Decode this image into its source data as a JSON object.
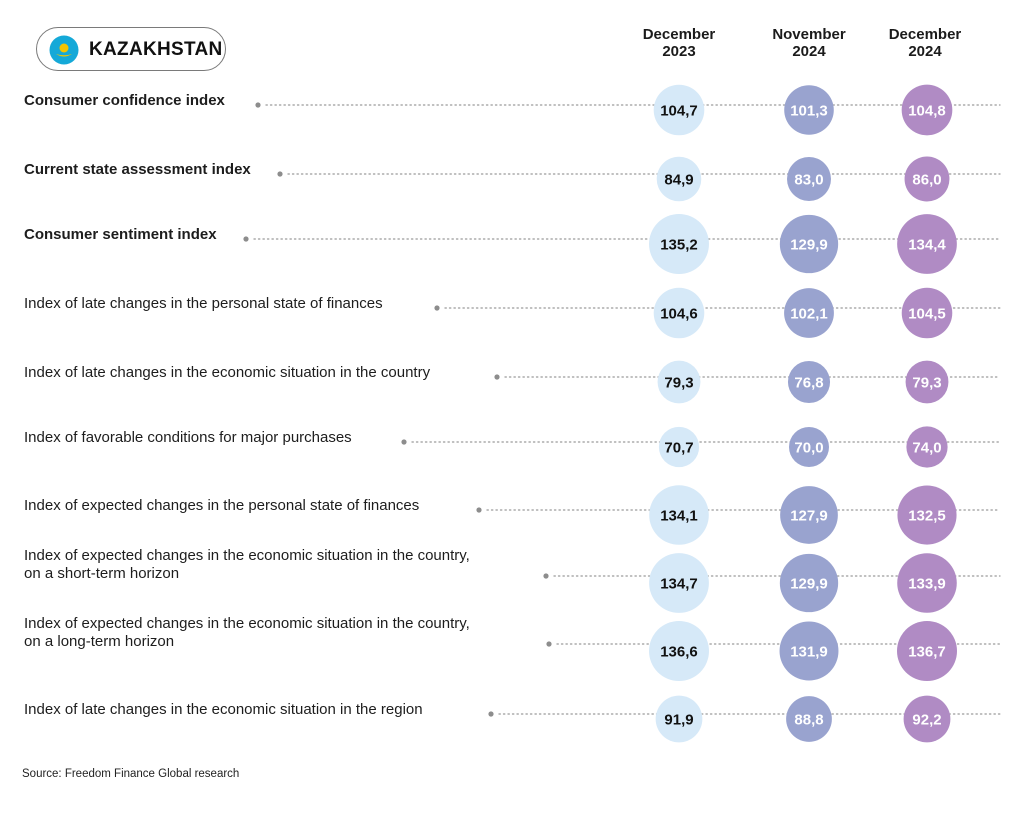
{
  "badge": {
    "country": "KAZAKHSTAN",
    "flag_icon": "kazakhstan-flag-icon"
  },
  "source": "Source: Freedom Finance Global research",
  "colors": {
    "dec2023": "#d6e9f8",
    "nov2024": "#99a3cf",
    "dec2024": "#b08bc4",
    "dec2023_text": "#111111",
    "other_text": "#ffffff",
    "dots": "#9a9a9a"
  },
  "chart_data": {
    "type": "table",
    "columns": [
      {
        "line1": "December",
        "line2": "2023"
      },
      {
        "line1": "November",
        "line2": "2024"
      },
      {
        "line1": "December",
        "line2": "2024"
      }
    ],
    "rows": [
      {
        "label": [
          "Consumer confidence index"
        ],
        "bold": true,
        "values": [
          "104,7",
          "101,3",
          "104,8"
        ]
      },
      {
        "label": [
          "Current state assessment index"
        ],
        "bold": true,
        "values": [
          "84,9",
          "83,0",
          "86,0"
        ]
      },
      {
        "label": [
          "Consumer sentiment index"
        ],
        "bold": true,
        "values": [
          "135,2",
          "129,9",
          "134,4"
        ]
      },
      {
        "label": [
          "Index of late changes in the personal state of finances"
        ],
        "bold": false,
        "values": [
          "104,6",
          "102,1",
          "104,5"
        ]
      },
      {
        "label": [
          "Index of late changes in the economic situation in the country"
        ],
        "bold": false,
        "values": [
          "79,3",
          "76,8",
          "79,3"
        ]
      },
      {
        "label": [
          "Index of favorable conditions for major purchases"
        ],
        "bold": false,
        "values": [
          "70,7",
          "70,0",
          "74,0"
        ]
      },
      {
        "label": [
          "Index of expected changes in the personal state of finances"
        ],
        "bold": false,
        "values": [
          "134,1",
          "127,9",
          "132,5"
        ]
      },
      {
        "label": [
          "Index of expected changes in the economic situation in the country,",
          "on a short-term horizon"
        ],
        "bold": false,
        "values": [
          "134,7",
          "129,9",
          "133,9"
        ]
      },
      {
        "label": [
          "Index of expected changes in the economic situation in the country,",
          "on a long-term horizon"
        ],
        "bold": false,
        "values": [
          "136,6",
          "131,9",
          "136,7"
        ]
      },
      {
        "label": [
          "Index of late changes in the economic situation in the region"
        ],
        "bold": false,
        "values": [
          "91,9",
          "88,8",
          "92,2"
        ]
      }
    ]
  }
}
